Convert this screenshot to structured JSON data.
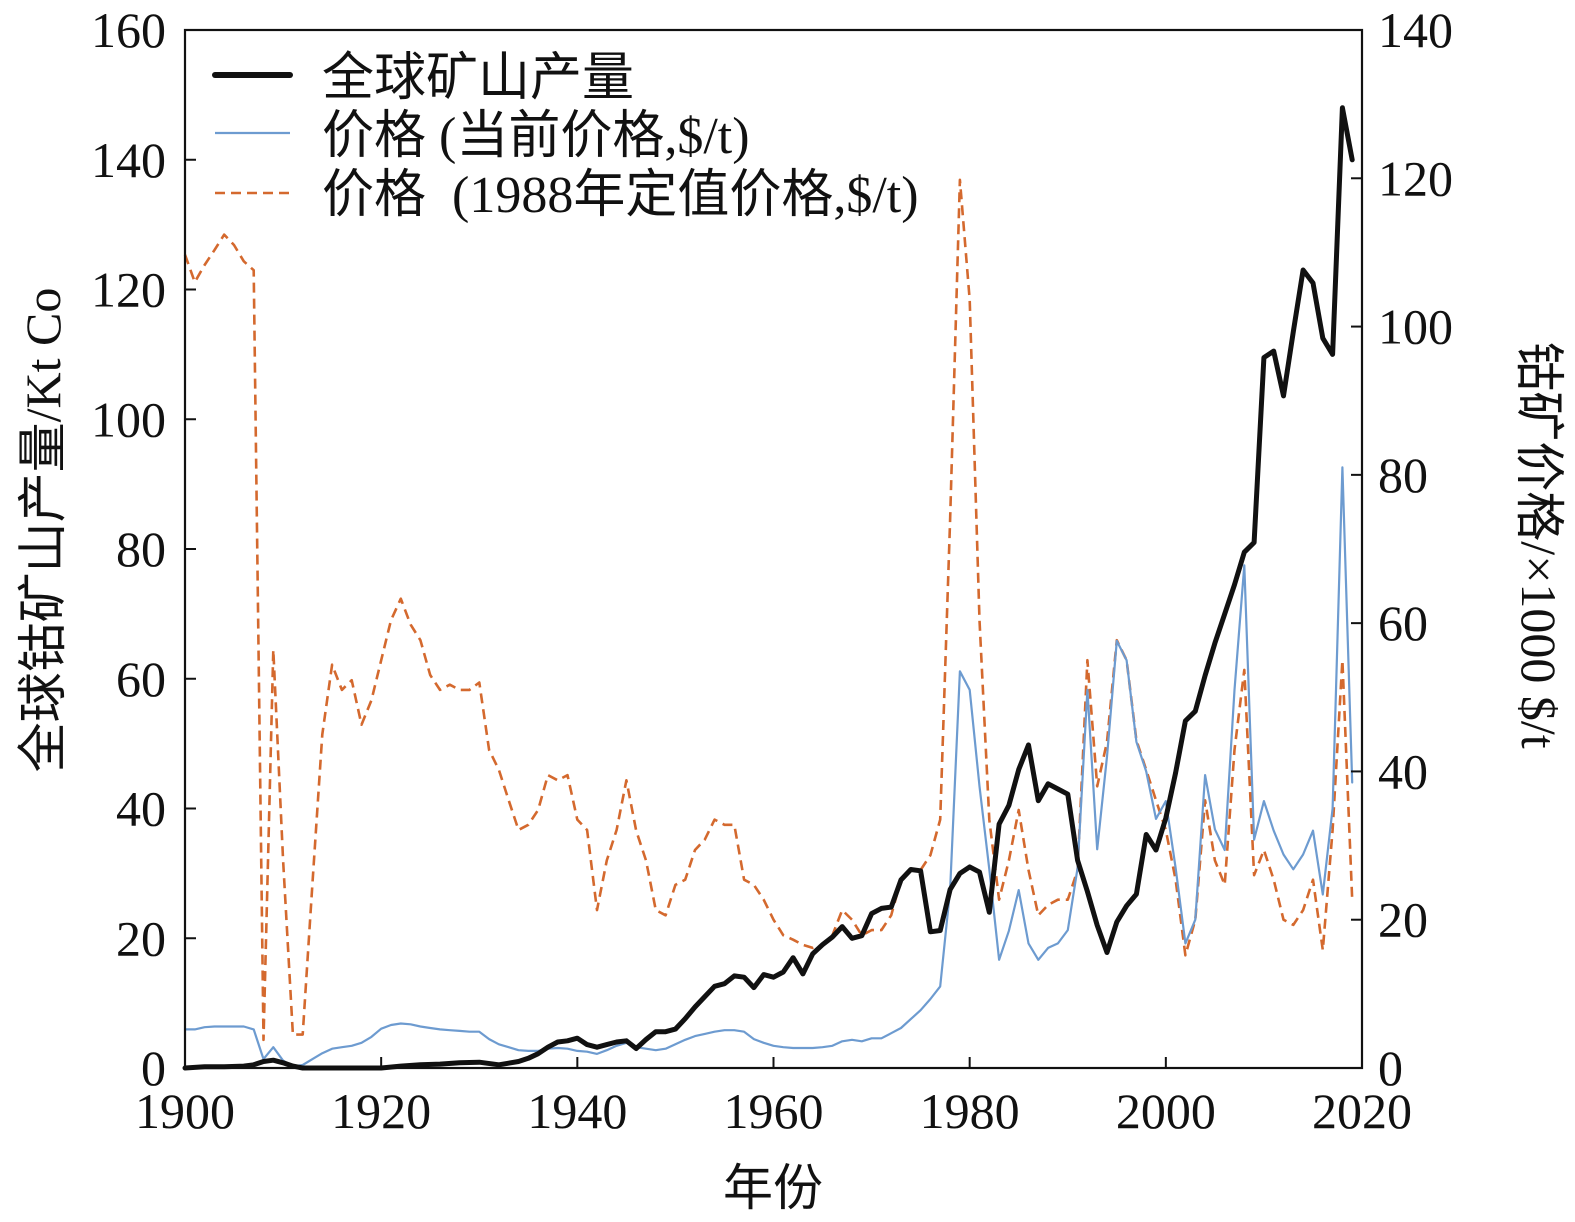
{
  "chart_data": {
    "type": "line",
    "xlabel": "年份",
    "ylabel_left": "全球钴矿山产量/Kt Co",
    "ylabel_right": "钴矿价格/×1000 $/t",
    "xlim": [
      1900,
      2020
    ],
    "ylim_left": [
      0,
      160
    ],
    "ylim_right": [
      0,
      140
    ],
    "x_ticks": [
      "1900",
      "1920",
      "1940",
      "1960",
      "1980",
      "2000",
      "2020"
    ],
    "y_left_ticks": [
      "0",
      "20",
      "40",
      "60",
      "80",
      "100",
      "120",
      "140",
      "160"
    ],
    "y_right_ticks": [
      "0",
      "20",
      "40",
      "60",
      "80",
      "100",
      "120",
      "140"
    ],
    "grid": false,
    "legend_position": "top-left",
    "x": [
      1900,
      1901,
      1902,
      1903,
      1904,
      1905,
      1906,
      1907,
      1908,
      1909,
      1910,
      1911,
      1912,
      1913,
      1914,
      1915,
      1916,
      1917,
      1918,
      1919,
      1920,
      1921,
      1922,
      1923,
      1924,
      1925,
      1926,
      1927,
      1928,
      1929,
      1930,
      1931,
      1932,
      1933,
      1934,
      1935,
      1936,
      1937,
      1938,
      1939,
      1940,
      1941,
      1942,
      1943,
      1944,
      1945,
      1946,
      1947,
      1948,
      1949,
      1950,
      1951,
      1952,
      1953,
      1954,
      1955,
      1956,
      1957,
      1958,
      1959,
      1960,
      1961,
      1962,
      1963,
      1964,
      1965,
      1966,
      1967,
      1968,
      1969,
      1970,
      1971,
      1972,
      1973,
      1974,
      1975,
      1976,
      1977,
      1978,
      1979,
      1980,
      1981,
      1982,
      1983,
      1984,
      1985,
      1986,
      1987,
      1988,
      1989,
      1990,
      1991,
      1992,
      1993,
      1994,
      1995,
      1996,
      1997,
      1998,
      1999,
      2000,
      2001,
      2002,
      2003,
      2004,
      2005,
      2006,
      2007,
      2008,
      2009,
      2010,
      2011,
      2012,
      2013,
      2014,
      2015,
      2016,
      2017,
      2018,
      2019
    ],
    "series": [
      {
        "name": "全球矿山产量",
        "axis": "left",
        "color": "#111111",
        "line_style": "solid",
        "x": [
          1900,
          1902,
          1904,
          1906,
          1907,
          1908,
          1909,
          1910,
          1911,
          1912,
          1915,
          1918,
          1920,
          1922,
          1924,
          1926,
          1928,
          1930,
          1932,
          1934,
          1935,
          1936,
          1937,
          1938,
          1939,
          1940,
          1941,
          1942,
          1943,
          1944,
          1945,
          1946,
          1947,
          1948,
          1949,
          1950,
          1951,
          1952,
          1953,
          1954,
          1955,
          1956,
          1957,
          1958,
          1959,
          1960,
          1961,
          1962,
          1963,
          1964,
          1965,
          1966,
          1967,
          1968,
          1969,
          1970,
          1971,
          1972,
          1973,
          1974,
          1975,
          1976,
          1977,
          1978,
          1979,
          1980,
          1981,
          1982,
          1983,
          1984,
          1985,
          1986,
          1987,
          1988,
          1989,
          1990,
          1991,
          1992,
          1993,
          1994,
          1995,
          1996,
          1997,
          1998,
          1999,
          2000,
          2001,
          2002,
          2003,
          2004,
          2005,
          2006,
          2007,
          2008,
          2009,
          2010,
          2011,
          2012,
          2013,
          2014,
          2015,
          2016,
          2017,
          2018,
          2019
        ],
        "y": [
          0,
          0.2,
          0.2,
          0.3,
          0.5,
          1.0,
          1.2,
          0.8,
          0.3,
          0,
          0,
          0,
          0,
          0.3,
          0.5,
          0.6,
          0.8,
          0.9,
          0.5,
          1.0,
          1.5,
          2.2,
          3.2,
          4.0,
          4.2,
          4.6,
          3.6,
          3.2,
          3.6,
          4.0,
          4.2,
          3.0,
          4.4,
          5.6,
          5.6,
          6.0,
          7.6,
          9.4,
          11.0,
          12.6,
          13.0,
          14.2,
          14.0,
          12.4,
          14.4,
          14.0,
          14.8,
          17.0,
          14.5,
          17.6,
          19.0,
          20.2,
          21.8,
          20.0,
          20.4,
          23.8,
          24.6,
          24.8,
          29.0,
          30.6,
          30.4,
          21.0,
          21.2,
          27.5,
          30.0,
          31.0,
          30.2,
          24.0,
          37.6,
          40.5,
          46.0,
          49.8,
          41.2,
          43.8,
          43.0,
          42.2,
          32.0,
          27.2,
          22.0,
          17.8,
          22.5,
          25.0,
          26.8,
          36.0,
          33.6,
          38.5,
          45.5,
          53.5,
          55.0,
          60.5,
          65.5,
          70.0,
          74.5,
          79.5,
          81.0,
          109.5,
          110.5,
          103.6,
          113.5,
          123.0,
          121.0,
          112.5,
          110.0,
          148.0,
          140.0
        ]
      },
      {
        "name": "价格 (当前价格,$/t)",
        "axis": "right",
        "color": "#6d9bd0",
        "line_style": "solid",
        "y": [
          5.2,
          5.2,
          5.5,
          5.6,
          5.6,
          5.6,
          5.6,
          5.2,
          1.2,
          2.8,
          1.0,
          0.2,
          0.4,
          1.2,
          2.0,
          2.6,
          2.8,
          3.0,
          3.4,
          4.2,
          5.3,
          5.8,
          6.0,
          5.9,
          5.6,
          5.4,
          5.2,
          5.1,
          5.0,
          4.9,
          4.9,
          3.9,
          3.2,
          2.8,
          2.4,
          2.3,
          2.3,
          2.6,
          2.7,
          2.6,
          2.3,
          2.2,
          1.9,
          2.4,
          3.0,
          3.4,
          2.8,
          2.6,
          2.4,
          2.6,
          3.2,
          3.8,
          4.3,
          4.6,
          4.9,
          5.1,
          5.1,
          4.9,
          3.9,
          3.4,
          3.0,
          2.8,
          2.7,
          2.7,
          2.7,
          2.8,
          3.0,
          3.6,
          3.8,
          3.6,
          4.0,
          4.0,
          4.7,
          5.4,
          6.6,
          7.8,
          9.3,
          11.0,
          24.0,
          53.5,
          51.0,
          38.0,
          26.8,
          14.6,
          18.5,
          24.0,
          16.8,
          14.6,
          16.2,
          16.8,
          18.6,
          27.0,
          51.0,
          29.5,
          42.0,
          57.6,
          55.0,
          44.0,
          40.0,
          33.6,
          36.0,
          27.0,
          16.8,
          20.0,
          39.5,
          32.2,
          29.4,
          51.0,
          67.8,
          30.8,
          36.0,
          32.0,
          28.8,
          26.8,
          28.8,
          32.0,
          23.4,
          35.0,
          81.0,
          38.5
        ]
      },
      {
        "name": "价格  (1988年定值价格,$/t)",
        "axis": "right",
        "color": "#d4692e",
        "line_style": "dashed",
        "y": [
          109.7,
          106.0,
          108.3,
          110.3,
          112.4,
          111.0,
          108.8,
          107.6,
          3.8,
          56.4,
          28.0,
          4.5,
          4.5,
          25.0,
          45.0,
          54.4,
          51.0,
          52.3,
          46.3,
          49.6,
          55.0,
          60.4,
          63.3,
          59.8,
          57.7,
          53.0,
          51.0,
          51.7,
          51.0,
          51.0,
          52.0,
          42.9,
          40.2,
          36.1,
          32.1,
          32.8,
          34.8,
          39.5,
          38.8,
          39.5,
          33.5,
          32.1,
          21.3,
          28.0,
          32.1,
          38.8,
          32.0,
          28.0,
          21.3,
          20.6,
          24.7,
          25.4,
          29.4,
          30.8,
          33.5,
          32.8,
          32.8,
          25.4,
          24.7,
          22.7,
          20.0,
          17.9,
          17.3,
          16.6,
          16.2,
          16.6,
          17.9,
          21.3,
          20.0,
          17.9,
          18.6,
          18.6,
          20.6,
          25.4,
          26.7,
          26.7,
          28.7,
          33.5,
          73.9,
          119.8,
          103.6,
          60.4,
          33.5,
          22.7,
          28.0,
          34.8,
          26.7,
          20.6,
          22.0,
          22.7,
          22.7,
          26.7,
          55.0,
          38.0,
          44.0,
          57.7,
          55.0,
          44.2,
          40.2,
          36.1,
          32.1,
          25.4,
          15.2,
          20.0,
          36.1,
          28.0,
          24.7,
          42.9,
          53.7,
          26.0,
          29.4,
          25.4,
          20.0,
          19.3,
          21.3,
          25.4,
          15.9,
          32.1,
          55.0,
          22.7
        ]
      }
    ]
  }
}
